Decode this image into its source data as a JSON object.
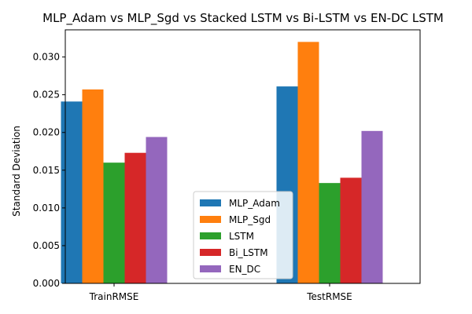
{
  "chart_data": {
    "type": "bar",
    "title": "MLP_Adam vs MLP_Sgd vs Stacked LSTM vs Bi-LSTM vs EN-DC LSTM",
    "xlabel": "",
    "ylabel": "Standard Deviation",
    "categories": [
      "TrainRMSE",
      "TestRMSE"
    ],
    "ylim": [
      0,
      0.0336
    ],
    "yticks": [
      "0.000",
      "0.005",
      "0.010",
      "0.015",
      "0.020",
      "0.025",
      "0.030"
    ],
    "grid": false,
    "legend_position": "lower center",
    "series": [
      {
        "name": "MLP_Adam",
        "color": "#1f77b4",
        "values": [
          0.0241,
          0.0261
        ]
      },
      {
        "name": "MLP_Sgd",
        "color": "#ff7f0e",
        "values": [
          0.0257,
          0.032
        ]
      },
      {
        "name": "LSTM",
        "color": "#2ca02c",
        "values": [
          0.016,
          0.0133
        ]
      },
      {
        "name": "Bi_LSTM",
        "color": "#d62728",
        "values": [
          0.0173,
          0.014
        ]
      },
      {
        "name": "EN_DC",
        "color": "#9467bd",
        "values": [
          0.0194,
          0.0202
        ]
      }
    ]
  }
}
